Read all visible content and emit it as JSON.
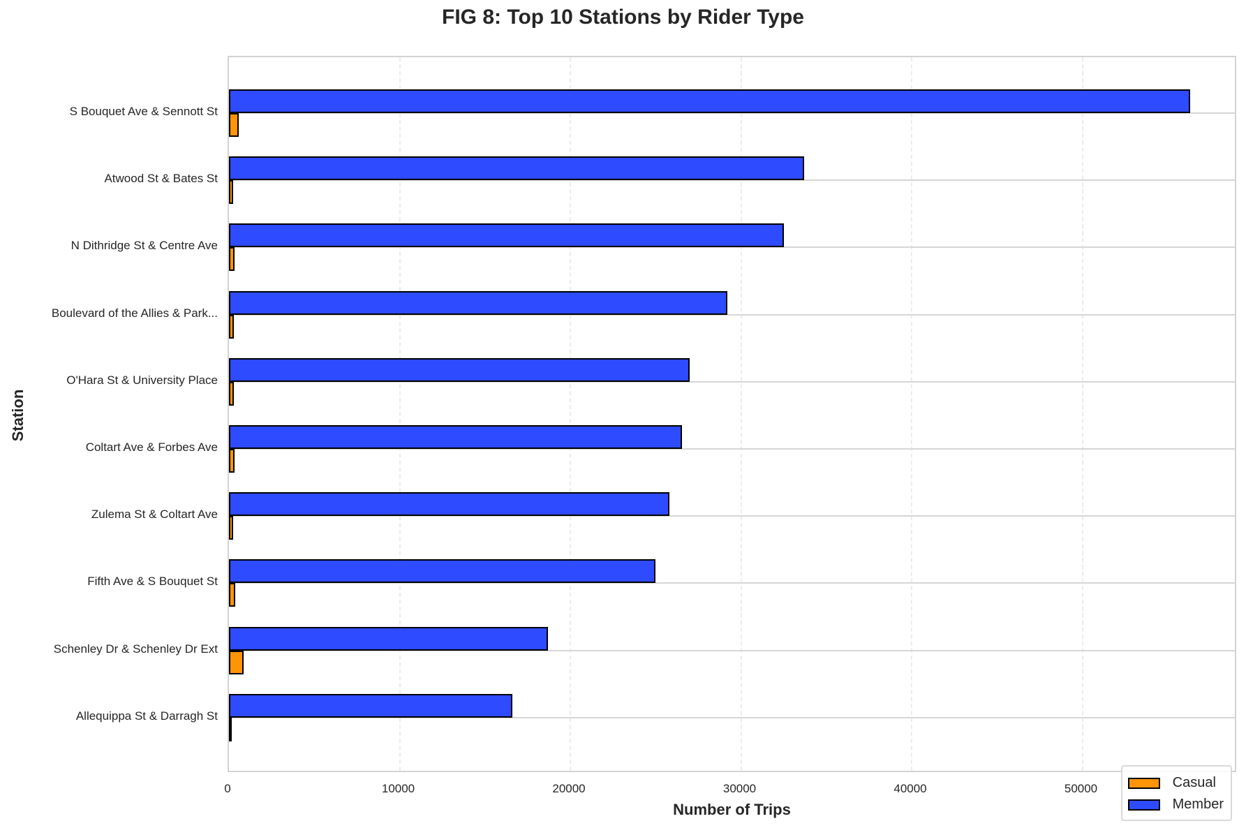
{
  "title": "FIG 8: Top 10 Stations by Rider Type",
  "colors": {
    "casual": "#ff9408",
    "member": "#2e4bff"
  },
  "chart_data": {
    "type": "bar",
    "orientation": "horizontal",
    "title": "FIG 8: Top 10 Stations by Rider Type",
    "xlabel": "Number of Trips",
    "ylabel": "Station",
    "xlim": [
      0,
      59100
    ],
    "xticks": [
      0,
      10000,
      20000,
      30000,
      40000,
      50000
    ],
    "grid": {
      "x": "dashed",
      "y": "solid"
    },
    "legend_position": "lower right",
    "categories": [
      "S Bouquet Ave & Sennott St",
      "Atwood St & Bates St",
      "N Dithridge St & Centre Ave",
      "Boulevard of the Allies & Park...",
      "O'Hara St & University Place",
      "Coltart Ave & Forbes Ave",
      "Zulema St & Coltart Ave",
      "Fifth Ave & S Bouquet St",
      "Schenley Dr & Schenley Dr Ext",
      "Allequippa St & Darragh St"
    ],
    "series": [
      {
        "name": "Casual",
        "color": "#ff9408",
        "values": [
          570,
          260,
          330,
          280,
          270,
          330,
          230,
          380,
          850,
          90
        ]
      },
      {
        "name": "Member",
        "color": "#2e4bff",
        "values": [
          56300,
          33700,
          32500,
          29200,
          27000,
          26550,
          25800,
          25000,
          18700,
          16600
        ]
      }
    ]
  },
  "xticks_labels": [
    "0",
    "10000",
    "20000",
    "30000",
    "40000",
    "50000"
  ],
  "legend": [
    {
      "label": "Casual",
      "color": "#ff9408"
    },
    {
      "label": "Member",
      "color": "#2e4bff"
    }
  ]
}
